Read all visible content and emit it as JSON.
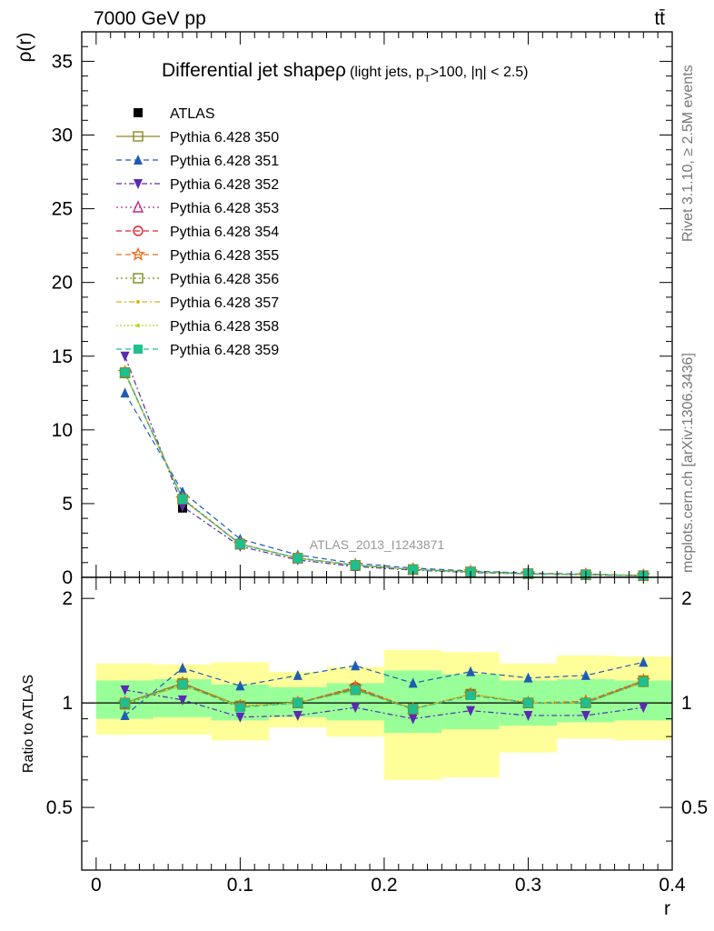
{
  "header": {
    "left": "7000 GeV pp",
    "right": "tt̄"
  },
  "side_text": {
    "top": "Rivet 3.1.10, ≥ 2.5M events",
    "bottom": "mcplots.cern.ch [arXiv:1306.3436]"
  },
  "chart_data": [
    {
      "type": "line",
      "panel": "main",
      "title": "Differential jet shapeρ",
      "title_suffix": {
        "text1": "(light jets, p",
        "sub": "T",
        "text2": ">100, |η| < 2.5)"
      },
      "watermark": "ATLAS_2013_I1243871",
      "ylabel": "ρ(r)",
      "xlim": [
        -0.01,
        0.4
      ],
      "ylim": [
        0,
        37
      ],
      "yticks": [
        0,
        5,
        10,
        15,
        20,
        25,
        30,
        35
      ],
      "x": [
        0.02,
        0.06,
        0.1,
        0.14,
        0.18,
        0.22,
        0.26,
        0.3,
        0.34,
        0.38
      ],
      "reference": {
        "name": "ATLAS",
        "values": [
          13.9,
          4.7,
          2.3,
          1.3,
          0.75,
          0.55,
          0.35,
          0.25,
          0.18,
          0.1
        ]
      },
      "series": [
        {
          "name": "Pythia 6.428 350",
          "color": "#8b8b1f",
          "marker": "square-open",
          "dash": "solid",
          "values": [
            13.9,
            5.3,
            2.25,
            1.3,
            0.82,
            0.53,
            0.37,
            0.25,
            0.18,
            0.116
          ]
        },
        {
          "name": "Pythia 6.428 351",
          "color": "#1f5bb5",
          "marker": "triangle-up",
          "dash": "6,4",
          "values": [
            12.5,
            5.8,
            2.6,
            1.52,
            0.95,
            0.63,
            0.43,
            0.29,
            0.22,
            0.131
          ]
        },
        {
          "name": "Pythia 6.428 352",
          "color": "#5a2bb0",
          "marker": "triangle-down",
          "dash": "6,3,2,3",
          "values": [
            15.0,
            4.8,
            2.1,
            1.18,
            0.73,
            0.49,
            0.33,
            0.23,
            0.166,
            0.097
          ]
        },
        {
          "name": "Pythia 6.428 353",
          "color": "#c2278a",
          "marker": "triangle-open",
          "dash": "2,3",
          "values": [
            13.9,
            5.35,
            2.27,
            1.3,
            0.83,
            0.53,
            0.37,
            0.25,
            0.182,
            0.116
          ]
        },
        {
          "name": "Pythia 6.428 354",
          "color": "#e0202a",
          "marker": "circle-open",
          "dash": "6,4",
          "values": [
            13.9,
            5.3,
            2.25,
            1.3,
            0.83,
            0.53,
            0.37,
            0.25,
            0.18,
            0.115
          ]
        },
        {
          "name": "Pythia 6.428 355",
          "color": "#f06a1a",
          "marker": "star-open",
          "dash": "6,4",
          "values": [
            13.9,
            5.32,
            2.26,
            1.3,
            0.83,
            0.53,
            0.37,
            0.25,
            0.181,
            0.116
          ]
        },
        {
          "name": "Pythia 6.428 356",
          "color": "#7a8a1a",
          "marker": "square-open",
          "dash": "2,3",
          "values": [
            13.85,
            5.3,
            2.25,
            1.3,
            0.82,
            0.53,
            0.37,
            0.25,
            0.18,
            0.115
          ]
        },
        {
          "name": "Pythia 6.428 357",
          "color": "#d8b41e",
          "marker": "dot",
          "dash": "6,3,2,3",
          "values": [
            13.9,
            5.28,
            2.25,
            1.3,
            0.82,
            0.53,
            0.37,
            0.25,
            0.18,
            0.115
          ]
        },
        {
          "name": "Pythia 6.428 358",
          "color": "#bcd42a",
          "marker": "dot",
          "dash": "2,2",
          "values": [
            13.9,
            5.28,
            2.25,
            1.3,
            0.82,
            0.53,
            0.37,
            0.25,
            0.18,
            0.114
          ]
        },
        {
          "name": "Pythia 6.428 359",
          "color": "#1fbf8f",
          "marker": "square",
          "dash": "6,4",
          "values": [
            13.9,
            5.3,
            2.25,
            1.3,
            0.82,
            0.53,
            0.37,
            0.25,
            0.18,
            0.115
          ]
        }
      ]
    },
    {
      "type": "line",
      "panel": "ratio",
      "ylabel": "Ratio to ATLAS",
      "xlabel": "r",
      "xlim": [
        -0.01,
        0.4
      ],
      "ylim": [
        0.33,
        2.3
      ],
      "yticks": [
        0.5,
        1,
        2
      ],
      "ytick_labels": [
        "0.5",
        "1",
        "2"
      ],
      "xticks": [
        0,
        0.1,
        0.2,
        0.3,
        0.4
      ],
      "xtick_labels": [
        "0",
        "0.1",
        "0.2",
        "0.3",
        "0.4"
      ],
      "bin_edges": [
        0.0,
        0.04,
        0.08,
        0.12,
        0.16,
        0.2,
        0.24,
        0.28,
        0.32,
        0.36,
        0.4
      ],
      "band_outer": {
        "color": "#ffff99",
        "low": [
          0.81,
          0.81,
          0.78,
          0.85,
          0.8,
          0.6,
          0.61,
          0.72,
          0.79,
          0.78
        ],
        "high": [
          1.3,
          1.29,
          1.31,
          1.23,
          1.27,
          1.42,
          1.4,
          1.3,
          1.37,
          1.36
        ]
      },
      "band_inner": {
        "color": "#99ff99",
        "low": [
          0.9,
          0.91,
          0.89,
          0.91,
          0.89,
          0.82,
          0.84,
          0.86,
          0.88,
          0.89
        ],
        "high": [
          1.16,
          1.17,
          1.13,
          1.11,
          1.14,
          1.24,
          1.21,
          1.16,
          1.17,
          1.16
        ]
      },
      "series": [
        {
          "name": "Pythia 6.428 350",
          "values": [
            1.0,
            1.14,
            0.98,
            1.0,
            1.1,
            0.96,
            1.06,
            1.0,
            1.0,
            1.16
          ]
        },
        {
          "name": "Pythia 6.428 351",
          "values": [
            0.92,
            1.26,
            1.12,
            1.2,
            1.28,
            1.14,
            1.23,
            1.18,
            1.2,
            1.31
          ]
        },
        {
          "name": "Pythia 6.428 352",
          "values": [
            1.09,
            1.02,
            0.91,
            0.92,
            0.97,
            0.9,
            0.95,
            0.92,
            0.92,
            0.97
          ]
        },
        {
          "name": "Pythia 6.428 353",
          "values": [
            1.0,
            1.14,
            0.98,
            1.0,
            1.11,
            0.96,
            1.06,
            1.0,
            1.01,
            1.16
          ]
        },
        {
          "name": "Pythia 6.428 354",
          "values": [
            1.0,
            1.13,
            0.98,
            1.0,
            1.11,
            0.96,
            1.06,
            1.0,
            1.0,
            1.15
          ]
        },
        {
          "name": "Pythia 6.428 355",
          "values": [
            1.0,
            1.14,
            0.98,
            1.0,
            1.11,
            0.96,
            1.06,
            1.0,
            1.01,
            1.16
          ]
        },
        {
          "name": "Pythia 6.428 356",
          "values": [
            0.99,
            1.13,
            0.98,
            1.0,
            1.09,
            0.96,
            1.06,
            1.0,
            1.0,
            1.15
          ]
        },
        {
          "name": "Pythia 6.428 357",
          "values": [
            1.0,
            1.12,
            0.98,
            1.0,
            1.09,
            0.96,
            1.06,
            1.0,
            1.0,
            1.15
          ]
        },
        {
          "name": "Pythia 6.428 358",
          "values": [
            1.0,
            1.12,
            0.98,
            1.0,
            1.09,
            0.96,
            1.06,
            1.0,
            1.0,
            1.14
          ]
        },
        {
          "name": "Pythia 6.428 359",
          "values": [
            1.0,
            1.13,
            0.97,
            1.0,
            1.09,
            0.96,
            1.05,
            1.0,
            1.0,
            1.15
          ]
        }
      ]
    }
  ]
}
